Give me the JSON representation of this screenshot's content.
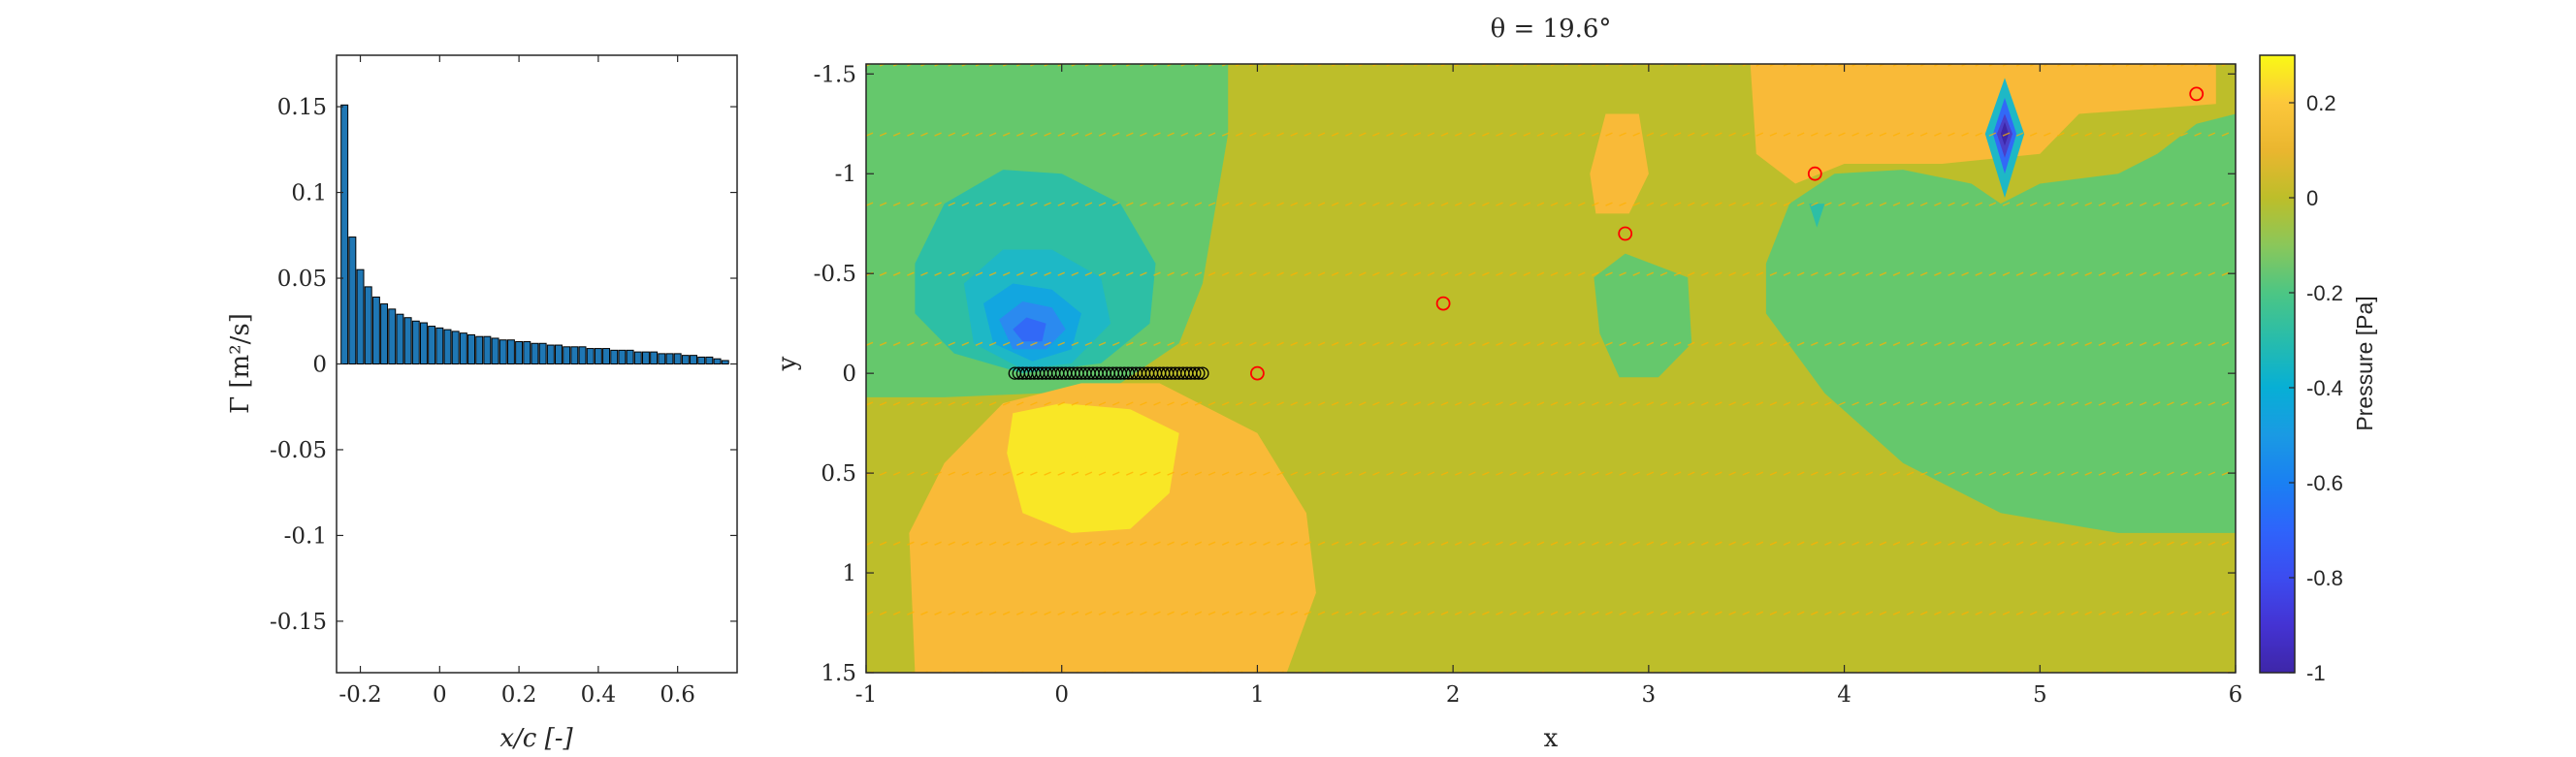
{
  "chart_data": [
    {
      "type": "bar",
      "title": "",
      "xlabel": "x/c [-]",
      "ylabel": "Γ [m²/s]",
      "xlim": [
        -0.26,
        0.75
      ],
      "ylim": [
        -0.18,
        0.18
      ],
      "xticks": [
        "-0.2",
        "0",
        "0.2",
        "0.4",
        "0.6"
      ],
      "xtick_values": [
        -0.2,
        0,
        0.2,
        0.4,
        0.6
      ],
      "yticks": [
        "0.15",
        "0.1",
        "0.05",
        "0",
        "-0.05",
        "-0.1",
        "-0.15"
      ],
      "ytick_values": [
        0.15,
        0.1,
        0.05,
        0,
        -0.05,
        -0.1,
        -0.15
      ],
      "bar_color": "#1f77b4",
      "bar_edge_color": "#000000",
      "x": [
        -0.24,
        -0.22,
        -0.2,
        -0.18,
        -0.16,
        -0.14,
        -0.12,
        -0.1,
        -0.08,
        -0.06,
        -0.04,
        -0.02,
        0.0,
        0.02,
        0.04,
        0.06,
        0.08,
        0.1,
        0.12,
        0.14,
        0.16,
        0.18,
        0.2,
        0.22,
        0.24,
        0.26,
        0.28,
        0.3,
        0.32,
        0.34,
        0.36,
        0.38,
        0.4,
        0.42,
        0.44,
        0.46,
        0.48,
        0.5,
        0.52,
        0.54,
        0.56,
        0.58,
        0.6,
        0.62,
        0.64,
        0.66,
        0.68,
        0.7,
        0.72
      ],
      "values": [
        0.151,
        0.074,
        0.055,
        0.045,
        0.039,
        0.035,
        0.032,
        0.029,
        0.027,
        0.025,
        0.024,
        0.022,
        0.021,
        0.02,
        0.019,
        0.018,
        0.017,
        0.016,
        0.016,
        0.015,
        0.014,
        0.014,
        0.013,
        0.013,
        0.012,
        0.012,
        0.011,
        0.011,
        0.01,
        0.01,
        0.01,
        0.009,
        0.009,
        0.009,
        0.008,
        0.008,
        0.008,
        0.007,
        0.007,
        0.007,
        0.006,
        0.006,
        0.006,
        0.005,
        0.005,
        0.004,
        0.004,
        0.003,
        0.002
      ]
    },
    {
      "type": "heatmap",
      "subtype": "filled-contour",
      "title": "θ = 19.6°",
      "xlabel": "x",
      "ylabel": "y",
      "xlim": [
        -1,
        6
      ],
      "ylim": [
        -1.55,
        1.5
      ],
      "y_reversed": true,
      "xticks": [
        "-1",
        "0",
        "1",
        "2",
        "3",
        "4",
        "5",
        "6"
      ],
      "xtick_values": [
        -1,
        0,
        1,
        2,
        3,
        4,
        5,
        6
      ],
      "yticks": [
        "-1.5",
        "-1",
        "-0.5",
        "0",
        "0.5",
        "1",
        "1.5"
      ],
      "ytick_values": [
        -1.5,
        -1,
        -0.5,
        0,
        0.5,
        1,
        1.5
      ],
      "background_value": 0,
      "colorbar": {
        "label": "Pressure [Pa]",
        "range": [
          -1,
          0.3
        ],
        "ticks": [
          "0.2",
          "0",
          "-0.2",
          "-0.4",
          "-0.6",
          "-0.8",
          "-1"
        ],
        "tick_values": [
          0.2,
          0,
          -0.2,
          -0.4,
          -0.6,
          -0.8,
          -1
        ],
        "levels": [
          {
            "value": 0.2,
            "color": "#f9e726"
          },
          {
            "value": 0.1,
            "color": "#f9ba38"
          },
          {
            "value": 0.0,
            "color": "#bdbe2a"
          },
          {
            "value": -0.1,
            "color": "#65c86c"
          },
          {
            "value": -0.2,
            "color": "#2dbfa5"
          },
          {
            "value": -0.3,
            "color": "#1eb8c6"
          },
          {
            "value": -0.4,
            "color": "#12a6e0"
          },
          {
            "value": -0.5,
            "color": "#2b8af0"
          },
          {
            "value": -0.6,
            "color": "#3269f7"
          },
          {
            "value": -0.8,
            "color": "#4b3ec8"
          },
          {
            "value": -1.0,
            "color": "#3e26a8"
          }
        ]
      },
      "regions": [
        {
          "value": -0.1,
          "points": [
            [
              -1,
              -1.55
            ],
            [
              0.85,
              -1.55
            ],
            [
              0.85,
              -1.2
            ],
            [
              0.78,
              -0.8
            ],
            [
              0.72,
              -0.45
            ],
            [
              0.6,
              -0.15
            ],
            [
              0.3,
              0.05
            ],
            [
              -0.1,
              0.1
            ],
            [
              -0.6,
              0.12
            ],
            [
              -1,
              0.12
            ]
          ]
        },
        {
          "value": -0.2,
          "points": [
            [
              -0.75,
              -0.55
            ],
            [
              -0.6,
              -0.85
            ],
            [
              -0.3,
              -1.02
            ],
            [
              0.0,
              -1.0
            ],
            [
              0.3,
              -0.85
            ],
            [
              0.48,
              -0.55
            ],
            [
              0.45,
              -0.25
            ],
            [
              0.2,
              -0.05
            ],
            [
              -0.2,
              0.0
            ],
            [
              -0.55,
              -0.1
            ],
            [
              -0.75,
              -0.3
            ]
          ]
        },
        {
          "value": -0.3,
          "points": [
            [
              -0.5,
              -0.45
            ],
            [
              -0.3,
              -0.62
            ],
            [
              -0.05,
              -0.62
            ],
            [
              0.2,
              -0.48
            ],
            [
              0.25,
              -0.25
            ],
            [
              0.05,
              -0.05
            ],
            [
              -0.2,
              -0.02
            ],
            [
              -0.45,
              -0.15
            ]
          ]
        },
        {
          "value": -0.4,
          "points": [
            [
              -0.4,
              -0.35
            ],
            [
              -0.25,
              -0.45
            ],
            [
              -0.05,
              -0.42
            ],
            [
              0.1,
              -0.3
            ],
            [
              0.05,
              -0.12
            ],
            [
              -0.15,
              -0.06
            ],
            [
              -0.35,
              -0.15
            ]
          ]
        },
        {
          "value": -0.5,
          "points": [
            [
              -0.32,
              -0.27
            ],
            [
              -0.2,
              -0.36
            ],
            [
              -0.05,
              -0.33
            ],
            [
              0.02,
              -0.22
            ],
            [
              -0.08,
              -0.12
            ],
            [
              -0.25,
              -0.12
            ]
          ]
        },
        {
          "value": -0.6,
          "points": [
            [
              -0.25,
              -0.22
            ],
            [
              -0.18,
              -0.28
            ],
            [
              -0.08,
              -0.25
            ],
            [
              -0.1,
              -0.16
            ],
            [
              -0.2,
              -0.16
            ]
          ]
        },
        {
          "value": 0.1,
          "points": [
            [
              -0.75,
              1.5
            ],
            [
              -0.78,
              0.8
            ],
            [
              -0.6,
              0.45
            ],
            [
              -0.3,
              0.15
            ],
            [
              0.1,
              0.05
            ],
            [
              0.5,
              0.05
            ],
            [
              1.0,
              0.3
            ],
            [
              1.25,
              0.7
            ],
            [
              1.3,
              1.1
            ],
            [
              1.15,
              1.5
            ]
          ]
        },
        {
          "value": 0.2,
          "points": [
            [
              -0.28,
              0.4
            ],
            [
              -0.25,
              0.2
            ],
            [
              0.0,
              0.15
            ],
            [
              0.35,
              0.18
            ],
            [
              0.6,
              0.3
            ],
            [
              0.55,
              0.6
            ],
            [
              0.35,
              0.78
            ],
            [
              0.05,
              0.8
            ],
            [
              -0.2,
              0.7
            ]
          ]
        },
        {
          "value": 0.25,
          "points": [
            [
              -0.2,
              0.35
            ],
            [
              -0.18,
              0.2
            ],
            [
              0.05,
              0.2
            ],
            [
              0.28,
              0.25
            ],
            [
              0.2,
              0.4
            ],
            [
              0.0,
              0.45
            ]
          ]
        },
        {
          "value": 0.1,
          "points": [
            [
              2.7,
              -1.0
            ],
            [
              2.78,
              -1.3
            ],
            [
              2.95,
              -1.3
            ],
            [
              3.0,
              -1.0
            ],
            [
              2.9,
              -0.8
            ],
            [
              2.73,
              -0.8
            ]
          ]
        },
        {
          "value": -0.1,
          "points": [
            [
              2.72,
              -0.48
            ],
            [
              2.88,
              -0.6
            ],
            [
              3.2,
              -0.48
            ],
            [
              3.22,
              -0.15
            ],
            [
              3.05,
              0.02
            ],
            [
              2.85,
              0.02
            ],
            [
              2.75,
              -0.2
            ]
          ]
        },
        {
          "value": 0.1,
          "points": [
            [
              3.52,
              -1.55
            ],
            [
              5.9,
              -1.55
            ],
            [
              5.9,
              -1.35
            ],
            [
              5.2,
              -1.3
            ],
            [
              5.0,
              -1.1
            ],
            [
              4.5,
              -1.05
            ],
            [
              4.0,
              -1.05
            ],
            [
              3.75,
              -0.95
            ],
            [
              3.55,
              -1.1
            ]
          ]
        },
        {
          "value": -0.1,
          "points": [
            [
              3.6,
              -0.55
            ],
            [
              3.72,
              -0.85
            ],
            [
              3.95,
              -1.0
            ],
            [
              4.3,
              -1.02
            ],
            [
              4.65,
              -0.95
            ],
            [
              4.8,
              -0.85
            ],
            [
              5.0,
              -0.95
            ],
            [
              5.4,
              -1.0
            ],
            [
              5.6,
              -1.1
            ],
            [
              5.8,
              -1.25
            ],
            [
              6.0,
              -1.3
            ],
            [
              6.0,
              0.8
            ],
            [
              5.4,
              0.8
            ],
            [
              4.8,
              0.7
            ],
            [
              4.3,
              0.45
            ],
            [
              3.9,
              0.1
            ],
            [
              3.6,
              -0.3
            ]
          ]
        },
        {
          "value": -0.2,
          "points": [
            [
              3.82,
              -0.85
            ],
            [
              3.9,
              -0.85
            ],
            [
              3.86,
              -0.73
            ]
          ]
        },
        {
          "value": -0.3,
          "points": [
            [
              4.82,
              -1.48
            ],
            [
              4.92,
              -1.2
            ],
            [
              4.82,
              -0.88
            ],
            [
              4.72,
              -1.2
            ]
          ]
        },
        {
          "value": -0.6,
          "points": [
            [
              4.82,
              -1.38
            ],
            [
              4.88,
              -1.2
            ],
            [
              4.82,
              -1.0
            ],
            [
              4.76,
              -1.2
            ]
          ]
        },
        {
          "value": -0.8,
          "points": [
            [
              4.82,
              -1.3
            ],
            [
              4.86,
              -1.2
            ],
            [
              4.82,
              -1.08
            ],
            [
              4.78,
              -1.2
            ]
          ]
        },
        {
          "value": -1.0,
          "points": [
            [
              4.82,
              -1.26
            ],
            [
              4.84,
              -1.2
            ],
            [
              4.82,
              -1.14
            ],
            [
              4.8,
              -1.2
            ]
          ]
        }
      ],
      "plate_points": {
        "x": [
          -0.24,
          -0.22,
          -0.2,
          -0.18,
          -0.16,
          -0.14,
          -0.12,
          -0.1,
          -0.08,
          -0.06,
          -0.04,
          -0.02,
          0.0,
          0.02,
          0.04,
          0.06,
          0.08,
          0.1,
          0.12,
          0.14,
          0.16,
          0.18,
          0.2,
          0.22,
          0.24,
          0.26,
          0.28,
          0.3,
          0.32,
          0.34,
          0.36,
          0.38,
          0.4,
          0.42,
          0.44,
          0.46,
          0.48,
          0.5,
          0.52,
          0.54,
          0.56,
          0.58,
          0.6,
          0.62,
          0.64,
          0.66,
          0.68,
          0.7,
          0.72
        ],
        "y": 0,
        "marker": "o",
        "color": "#000000"
      },
      "wake_points": {
        "x": [
          1.0,
          1.95,
          2.88,
          3.85,
          5.8
        ],
        "y": [
          0.0,
          -0.35,
          -0.7,
          -1.0,
          -1.4
        ],
        "marker": "o",
        "color": "#ff0000"
      },
      "quiver_rows": [
        -1.55,
        -1.2,
        -0.85,
        -0.5,
        -0.15,
        0.15,
        0.5,
        0.85,
        1.2,
        1.5
      ],
      "quiver_color": "#ffb000"
    }
  ]
}
